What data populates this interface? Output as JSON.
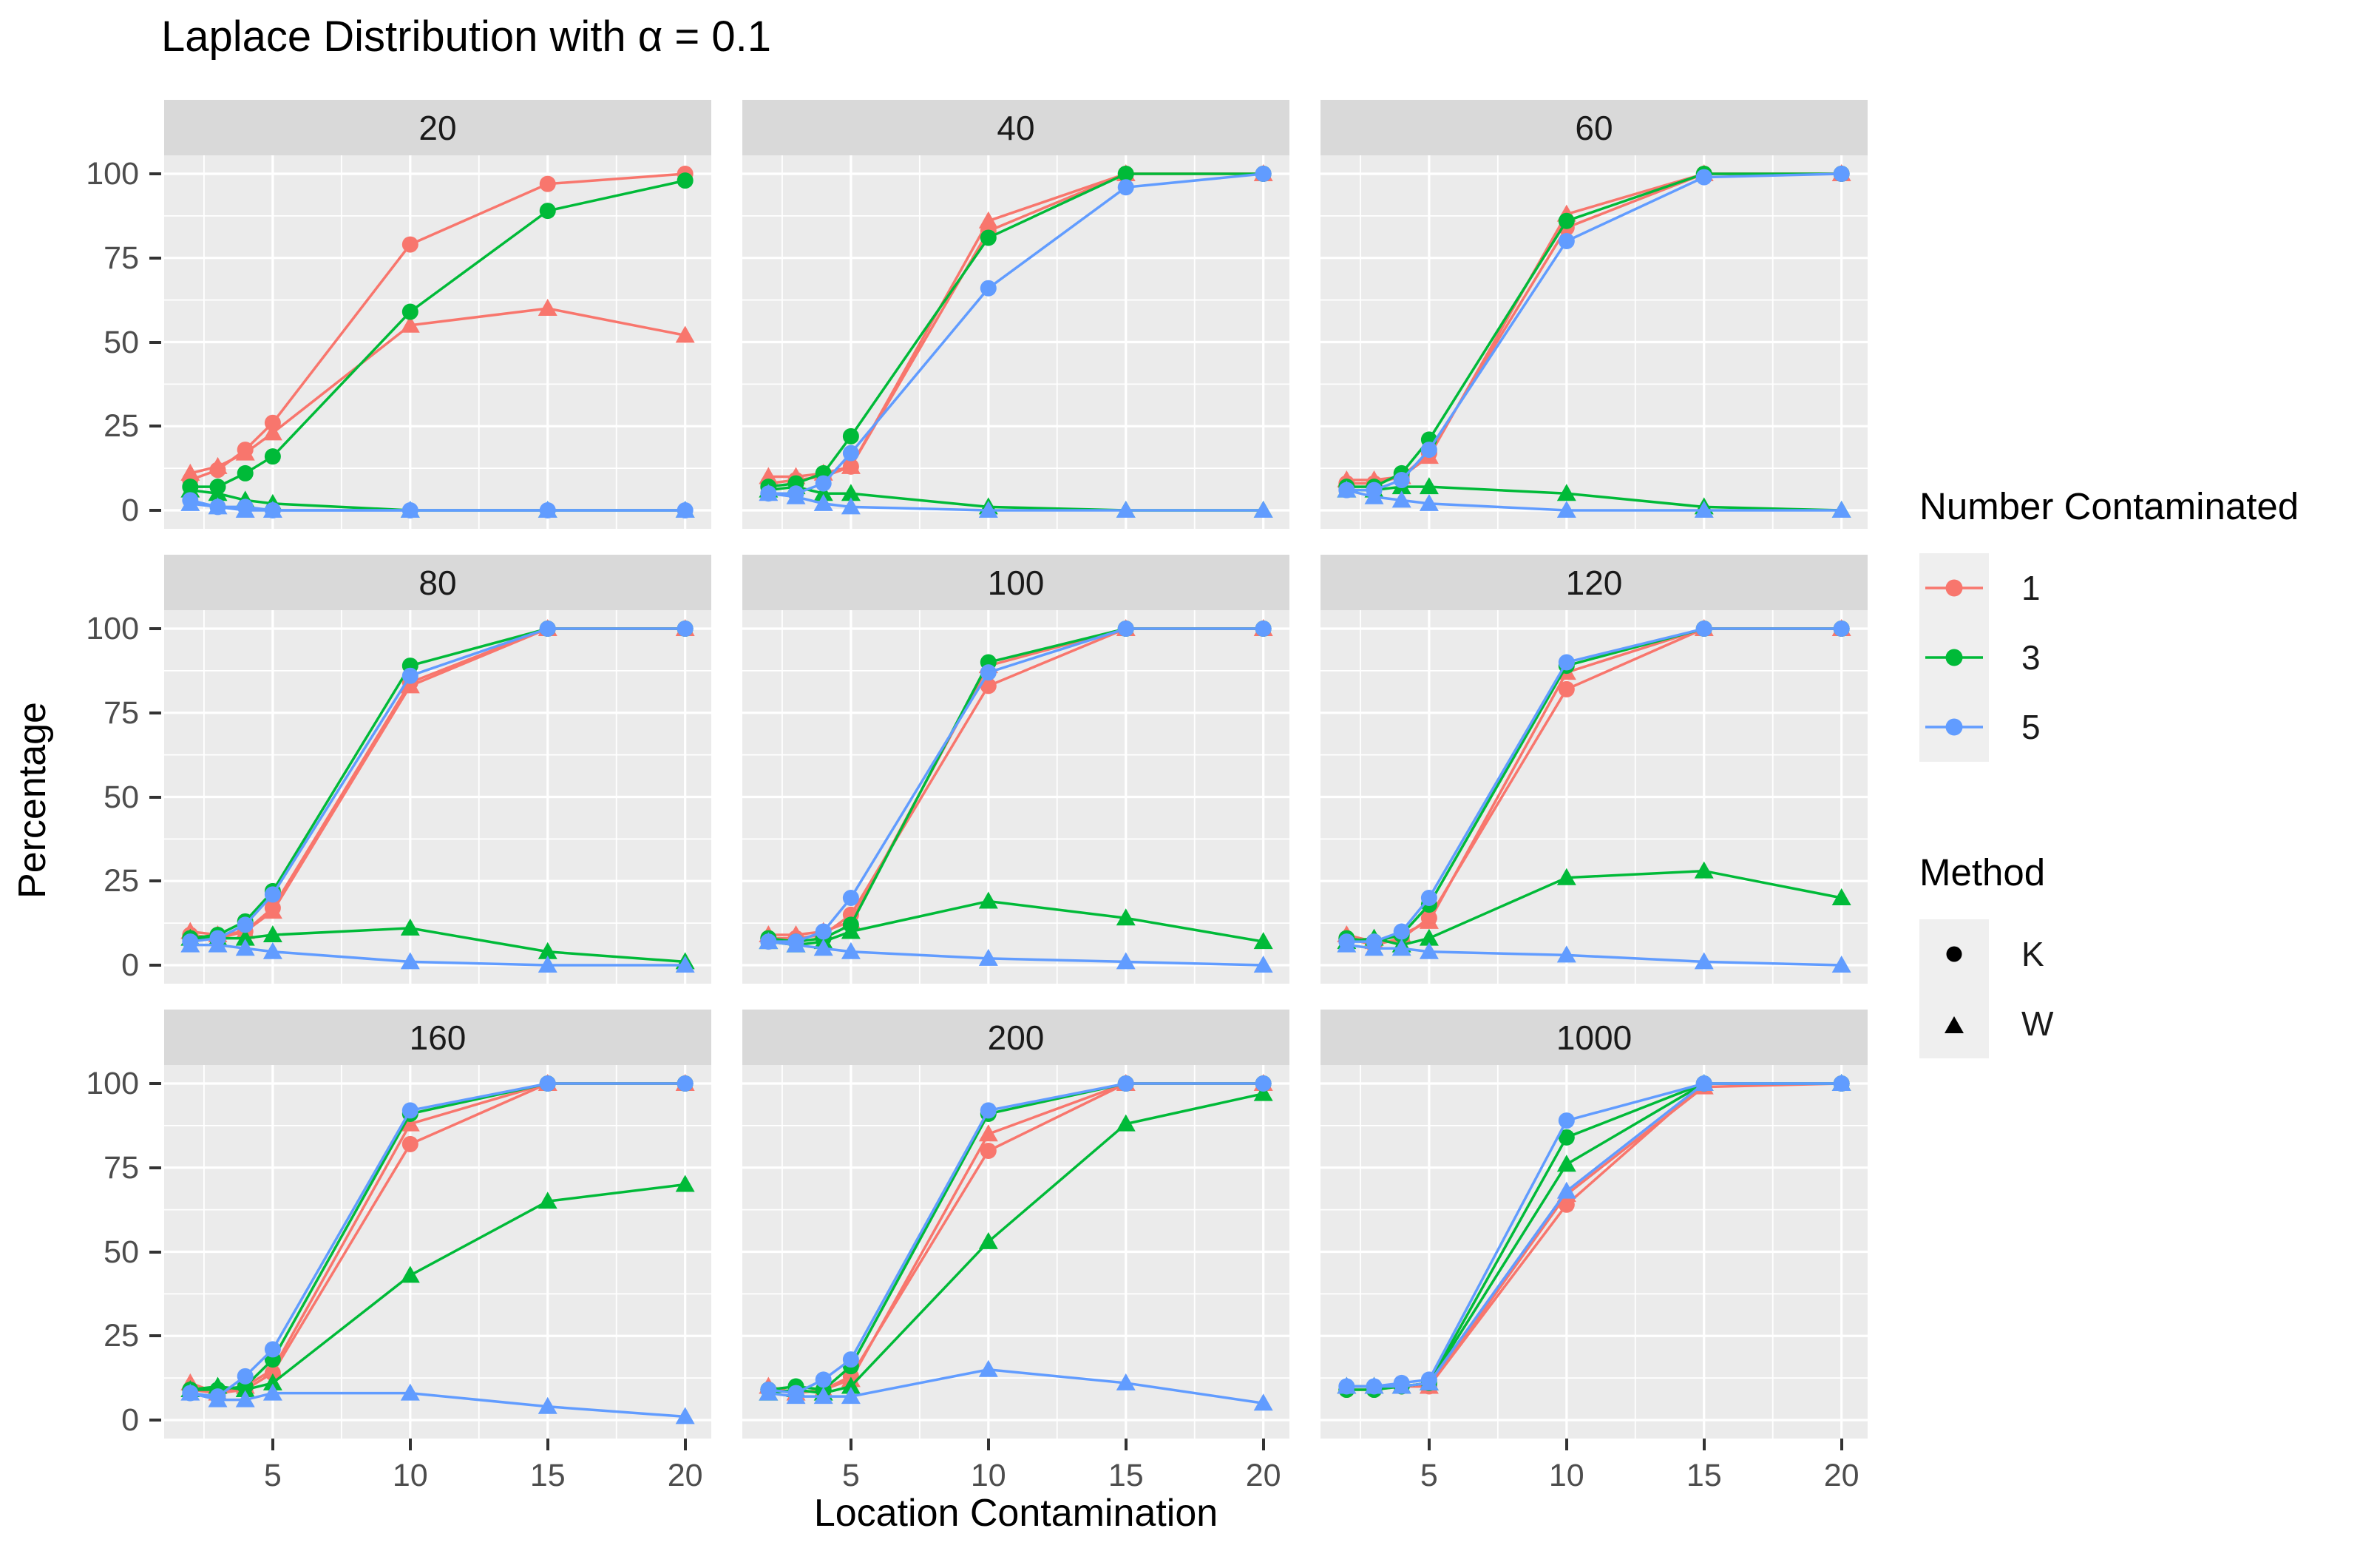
{
  "chart_data": {
    "type": "line",
    "title": "Laplace Distribution with α = 0.1",
    "xlabel": "Location Contamination",
    "ylabel": "Percentage",
    "x": [
      2,
      3,
      4,
      5,
      10,
      15,
      20
    ],
    "x_ticks": [
      5,
      10,
      15,
      20
    ],
    "y_ticks": [
      0,
      25,
      50,
      75,
      100
    ],
    "xlim": [
      1.05,
      20.95
    ],
    "ylim": [
      -5.5,
      105.5
    ],
    "grid": "on",
    "legend_position": "right",
    "colors": {
      "panel_bg": "#ebebeb",
      "strip_bg": "#d9d9d9",
      "grid": "#ffffff",
      "series_1": "#F8766D",
      "series_3": "#00BA38",
      "series_5": "#619CFF"
    },
    "legend": {
      "color_title": "Number Contaminated",
      "colors": [
        {
          "label": "1",
          "hex": "#F8766D"
        },
        {
          "label": "3",
          "hex": "#00BA38"
        },
        {
          "label": "5",
          "hex": "#619CFF"
        }
      ],
      "shape_title": "Method",
      "shapes": [
        {
          "label": "K",
          "marker": "circle"
        },
        {
          "label": "W",
          "marker": "triangle"
        }
      ]
    },
    "facets": [
      {
        "label": "20",
        "series": [
          {
            "n": "1",
            "method": "K",
            "values": [
              9,
              12,
              18,
              26,
              79,
              97,
              100
            ]
          },
          {
            "n": "1",
            "method": "W",
            "values": [
              11,
              13,
              17,
              23,
              55,
              60,
              52
            ]
          },
          {
            "n": "3",
            "method": "K",
            "values": [
              7,
              7,
              11,
              16,
              59,
              89,
              98
            ]
          },
          {
            "n": "3",
            "method": "W",
            "values": [
              6,
              5,
              3,
              2,
              0,
              0,
              0
            ]
          },
          {
            "n": "5",
            "method": "K",
            "values": [
              3,
              1,
              1,
              0,
              0,
              0,
              0
            ]
          },
          {
            "n": "5",
            "method": "W",
            "values": [
              2,
              1,
              0,
              0,
              0,
              0,
              0
            ]
          }
        ]
      },
      {
        "label": "40",
        "series": [
          {
            "n": "1",
            "method": "K",
            "values": [
              8,
              9,
              10,
              13,
              83,
              100,
              100
            ]
          },
          {
            "n": "1",
            "method": "W",
            "values": [
              10,
              10,
              11,
              13,
              86,
              100,
              100
            ]
          },
          {
            "n": "3",
            "method": "K",
            "values": [
              7,
              8,
              11,
              22,
              81,
              100,
              100
            ]
          },
          {
            "n": "3",
            "method": "W",
            "values": [
              6,
              7,
              5,
              5,
              1,
              0,
              0
            ]
          },
          {
            "n": "5",
            "method": "K",
            "values": [
              5,
              5,
              8,
              17,
              66,
              96,
              100
            ]
          },
          {
            "n": "5",
            "method": "W",
            "values": [
              5,
              4,
              2,
              1,
              0,
              0,
              0
            ]
          }
        ]
      },
      {
        "label": "60",
        "series": [
          {
            "n": "1",
            "method": "K",
            "values": [
              8,
              8,
              10,
              17,
              84,
              100,
              100
            ]
          },
          {
            "n": "1",
            "method": "W",
            "values": [
              9,
              9,
              10,
              16,
              88,
              100,
              100
            ]
          },
          {
            "n": "3",
            "method": "K",
            "values": [
              7,
              7,
              11,
              21,
              86,
              100,
              100
            ]
          },
          {
            "n": "3",
            "method": "W",
            "values": [
              6,
              6,
              7,
              7,
              5,
              1,
              0
            ]
          },
          {
            "n": "5",
            "method": "K",
            "values": [
              6,
              6,
              9,
              18,
              80,
              99,
              100
            ]
          },
          {
            "n": "5",
            "method": "W",
            "values": [
              6,
              4,
              3,
              2,
              0,
              0,
              0
            ]
          }
        ]
      },
      {
        "label": "80",
        "series": [
          {
            "n": "1",
            "method": "K",
            "values": [
              9,
              8,
              10,
              17,
              84,
              100,
              100
            ]
          },
          {
            "n": "1",
            "method": "W",
            "values": [
              10,
              9,
              10,
              16,
              83,
              100,
              100
            ]
          },
          {
            "n": "3",
            "method": "K",
            "values": [
              8,
              9,
              13,
              22,
              89,
              100,
              100
            ]
          },
          {
            "n": "3",
            "method": "W",
            "values": [
              8,
              8,
              8,
              9,
              11,
              4,
              1
            ]
          },
          {
            "n": "5",
            "method": "K",
            "values": [
              7,
              8,
              12,
              21,
              86,
              100,
              100
            ]
          },
          {
            "n": "5",
            "method": "W",
            "values": [
              6,
              6,
              5,
              4,
              1,
              0,
              0
            ]
          }
        ]
      },
      {
        "label": "100",
        "series": [
          {
            "n": "1",
            "method": "K",
            "values": [
              8,
              8,
              9,
              15,
              83,
              100,
              100
            ]
          },
          {
            "n": "1",
            "method": "W",
            "values": [
              9,
              9,
              10,
              13,
              89,
              100,
              100
            ]
          },
          {
            "n": "3",
            "method": "K",
            "values": [
              8,
              7,
              8,
              12,
              90,
              100,
              100
            ]
          },
          {
            "n": "3",
            "method": "W",
            "values": [
              7,
              6,
              7,
              10,
              19,
              14,
              7
            ]
          },
          {
            "n": "5",
            "method": "K",
            "values": [
              7,
              7,
              10,
              20,
              87,
              100,
              100
            ]
          },
          {
            "n": "5",
            "method": "W",
            "values": [
              7,
              6,
              5,
              4,
              2,
              1,
              0
            ]
          }
        ]
      },
      {
        "label": "120",
        "series": [
          {
            "n": "1",
            "method": "K",
            "values": [
              8,
              6,
              8,
              14,
              82,
              100,
              100
            ]
          },
          {
            "n": "1",
            "method": "W",
            "values": [
              9,
              7,
              9,
              13,
              87,
              100,
              100
            ]
          },
          {
            "n": "3",
            "method": "K",
            "values": [
              8,
              7,
              9,
              18,
              89,
              100,
              100
            ]
          },
          {
            "n": "3",
            "method": "W",
            "values": [
              7,
              8,
              6,
              8,
              26,
              28,
              20
            ]
          },
          {
            "n": "5",
            "method": "K",
            "values": [
              7,
              7,
              10,
              20,
              90,
              100,
              100
            ]
          },
          {
            "n": "5",
            "method": "W",
            "values": [
              6,
              5,
              5,
              4,
              3,
              1,
              0
            ]
          }
        ]
      },
      {
        "label": "160",
        "series": [
          {
            "n": "1",
            "method": "K",
            "values": [
              9,
              8,
              9,
              14,
              82,
              100,
              100
            ]
          },
          {
            "n": "1",
            "method": "W",
            "values": [
              11,
              8,
              10,
              15,
              88,
              100,
              100
            ]
          },
          {
            "n": "3",
            "method": "K",
            "values": [
              9,
              9,
              10,
              18,
              91,
              100,
              100
            ]
          },
          {
            "n": "3",
            "method": "W",
            "values": [
              9,
              10,
              9,
              11,
              43,
              65,
              70
            ]
          },
          {
            "n": "5",
            "method": "K",
            "values": [
              8,
              7,
              13,
              21,
              92,
              100,
              100
            ]
          },
          {
            "n": "5",
            "method": "W",
            "values": [
              8,
              6,
              6,
              8,
              8,
              4,
              1
            ]
          }
        ]
      },
      {
        "label": "200",
        "series": [
          {
            "n": "1",
            "method": "K",
            "values": [
              9,
              8,
              9,
              13,
              80,
              100,
              100
            ]
          },
          {
            "n": "1",
            "method": "W",
            "values": [
              10,
              8,
              9,
              12,
              85,
              100,
              100
            ]
          },
          {
            "n": "3",
            "method": "K",
            "values": [
              9,
              10,
              9,
              16,
              91,
              100,
              100
            ]
          },
          {
            "n": "3",
            "method": "W",
            "values": [
              8,
              9,
              8,
              10,
              53,
              88,
              97
            ]
          },
          {
            "n": "5",
            "method": "K",
            "values": [
              9,
              8,
              12,
              18,
              92,
              100,
              100
            ]
          },
          {
            "n": "5",
            "method": "W",
            "values": [
              8,
              7,
              7,
              7,
              15,
              11,
              5
            ]
          }
        ]
      },
      {
        "label": "1000",
        "series": [
          {
            "n": "1",
            "method": "K",
            "values": [
              9,
              9,
              10,
              10,
              64,
              100,
              100
            ]
          },
          {
            "n": "1",
            "method": "W",
            "values": [
              10,
              10,
              10,
              10,
              67,
              99,
              100
            ]
          },
          {
            "n": "3",
            "method": "K",
            "values": [
              9,
              9,
              10,
              11,
              84,
              100,
              100
            ]
          },
          {
            "n": "3",
            "method": "W",
            "values": [
              10,
              10,
              10,
              11,
              76,
              100,
              100
            ]
          },
          {
            "n": "5",
            "method": "K",
            "values": [
              10,
              10,
              11,
              12,
              89,
              100,
              100
            ]
          },
          {
            "n": "5",
            "method": "W",
            "values": [
              10,
              10,
              10,
              11,
              68,
              100,
              100
            ]
          }
        ]
      }
    ]
  }
}
